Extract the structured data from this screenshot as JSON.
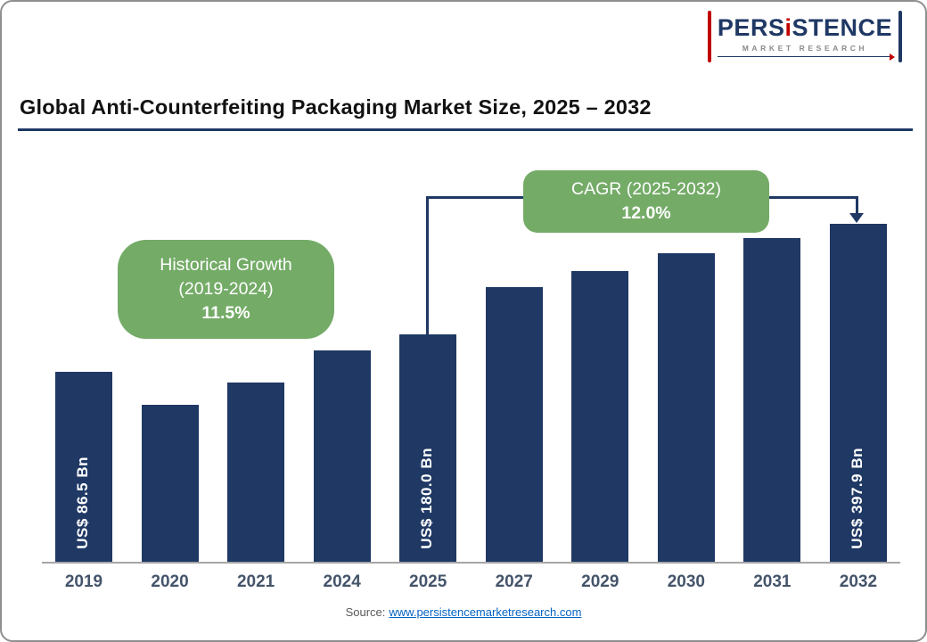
{
  "logo": {
    "brand_part1": "PERS",
    "brand_i": "i",
    "brand_part2": "STENCE",
    "subtitle": "MARKET RESEARCH"
  },
  "title": "Global Anti-Counterfeiting Packaging Market Size, 2025 – 2032",
  "callouts": {
    "historical": {
      "line1": "Historical Growth",
      "line2": "(2019-2024)",
      "value": "11.5%"
    },
    "cagr": {
      "line1": "CAGR (2025-2032)",
      "value": "12.0%"
    }
  },
  "source": {
    "prefix": "Source:",
    "link": "www.persistencemarketresearch.com"
  },
  "colors": {
    "bar": "#1F3864",
    "accent_navy": "#1F3864",
    "callout": "#74AB67",
    "logo_red": "#C00000",
    "link": "#0563C1",
    "axis_label": "#44546A"
  },
  "chart_data": {
    "type": "bar",
    "title": "Global Anti-Counterfeiting Packaging Market Size, 2025 – 2032",
    "unit": "US$ Bn",
    "categories": [
      "2019",
      "2020",
      "2021",
      "2024",
      "2025",
      "2027",
      "2029",
      "2030",
      "2031",
      "2032"
    ],
    "values": [
      86.5,
      null,
      null,
      null,
      180.0,
      null,
      null,
      null,
      null,
      397.9
    ],
    "bar_labels": [
      "US$ 86.5 Bn",
      "",
      "",
      "",
      "US$ 180.0 Bn",
      "",
      "",
      "",
      "",
      "US$ 397.9 Bn"
    ],
    "relative_heights": [
      0.562,
      0.464,
      0.53,
      0.625,
      0.673,
      0.813,
      0.86,
      0.913,
      0.958,
      1.0
    ],
    "historical_growth_pct": 11.5,
    "historical_growth_period": "2019-2024",
    "cagr_pct": 12.0,
    "cagr_period": "2025-2032",
    "xlabel": "",
    "ylabel": "",
    "value_axis_visible": false,
    "grid": false,
    "legend": false
  }
}
